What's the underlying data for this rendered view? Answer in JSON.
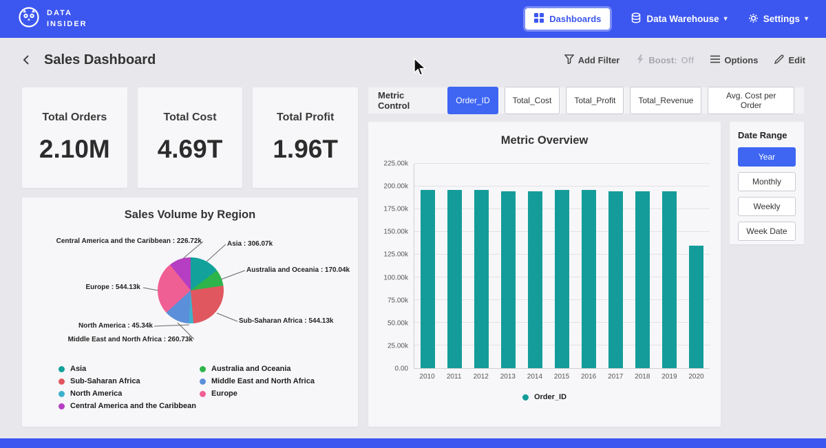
{
  "nav": {
    "brand_line1": "DATA",
    "brand_line2": "INSIDER",
    "dashboards": "Dashboards",
    "data_warehouse": "Data Warehouse",
    "settings": "Settings"
  },
  "header": {
    "title": "Sales Dashboard",
    "add_filter": "Add Filter",
    "boost_label": "Boost:",
    "boost_value": "Off",
    "options": "Options",
    "edit": "Edit"
  },
  "kpis": [
    {
      "label": "Total Orders",
      "value": "2.10M"
    },
    {
      "label": "Total Cost",
      "value": "4.69T"
    },
    {
      "label": "Total Profit",
      "value": "1.96T"
    }
  ],
  "metric_control": {
    "label": "Metric Control",
    "buttons": [
      "Order_ID",
      "Total_Cost",
      "Total_Profit",
      "Total_Revenue",
      "Avg. Cost per Order"
    ],
    "active_index": 0
  },
  "date_range": {
    "label": "Date Range",
    "buttons": [
      "Year",
      "Monthly",
      "Weekly",
      "Week Date"
    ],
    "active_index": 0
  },
  "colors": {
    "nav_blue": "#3c56f0",
    "accent_blue": "#3e66f3",
    "bar_teal": "#149c9a"
  },
  "chart_data": [
    {
      "type": "bar",
      "title": "Metric Overview",
      "categories": [
        "2010",
        "2011",
        "2012",
        "2013",
        "2014",
        "2015",
        "2016",
        "2017",
        "2018",
        "2019",
        "2020"
      ],
      "series": [
        {
          "name": "Order_ID",
          "values": [
            196000,
            196000,
            196000,
            195000,
            195000,
            196000,
            196000,
            195000,
            195000,
            195000,
            135000
          ]
        }
      ],
      "ylim": [
        0,
        225000
      ],
      "ytick_labels": [
        "0.00",
        "25.00k",
        "50.00k",
        "75.00k",
        "100.00k",
        "125.00k",
        "150.00k",
        "175.00k",
        "200.00k",
        "225.00k"
      ],
      "legend": [
        "Order_ID"
      ],
      "legend_position": "bottom",
      "grid": true,
      "bar_color": "#149c9a"
    },
    {
      "type": "pie",
      "title": "Sales Volume by Region",
      "slices": [
        {
          "name": "Asia",
          "value_k": 306.07,
          "label": "Asia : 306.07k",
          "color": "#12a19b"
        },
        {
          "name": "Australia and Oceania",
          "value_k": 170.04,
          "label": "Australia and Oceania : 170.04k",
          "color": "#2db44a"
        },
        {
          "name": "Sub-Saharan Africa",
          "value_k": 544.13,
          "label": "Sub-Saharan Africa : 544.13k",
          "color": "#e0575f"
        },
        {
          "name": "North America",
          "value_k": 45.34,
          "label": "North America : 45.34k",
          "color": "#3fb1cd"
        },
        {
          "name": "Middle East and North Africa",
          "value_k": 260.73,
          "label": "Middle East and North Africa : 260.73k",
          "color": "#5b8fd9"
        },
        {
          "name": "Europe",
          "value_k": 544.13,
          "label": "Europe : 544.13k",
          "color": "#f05f94"
        },
        {
          "name": "Central America and the Caribbean",
          "value_k": 226.72,
          "label": "Central America and the Caribbean : 226.72k",
          "color": "#b53ec2"
        }
      ],
      "legend_columns": [
        [
          0,
          2,
          3,
          6
        ],
        [
          1,
          4,
          5
        ]
      ]
    }
  ]
}
